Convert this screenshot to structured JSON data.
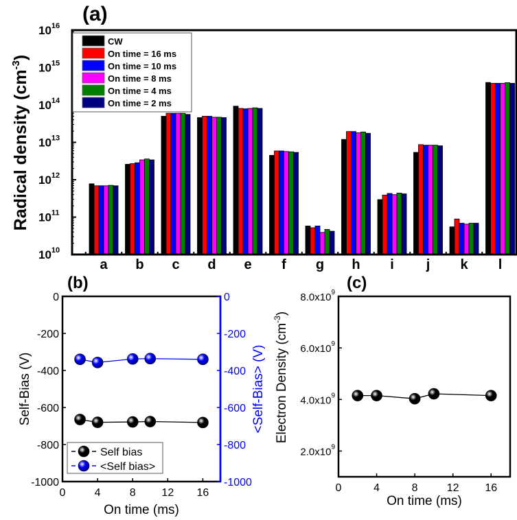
{
  "chart_data": [
    {
      "panel": "(a)",
      "type": "bar",
      "scale": "log",
      "ylabel": "Radical density (cm",
      "ylabel_sup": "-3",
      "ylabel_close": ")",
      "ylim": [
        10000000000.0,
        1e+16
      ],
      "yticks": [
        {
          "base": "10",
          "exp": "10"
        },
        {
          "base": "10",
          "exp": "11"
        },
        {
          "base": "10",
          "exp": "12"
        },
        {
          "base": "10",
          "exp": "13"
        },
        {
          "base": "10",
          "exp": "14"
        },
        {
          "base": "10",
          "exp": "15"
        },
        {
          "base": "10",
          "exp": "16"
        }
      ],
      "categories": [
        "a",
        "b",
        "c",
        "d",
        "e",
        "f",
        "g",
        "h",
        "i",
        "j",
        "k",
        "l"
      ],
      "legend_position": "top-left",
      "series": [
        {
          "name": "CW",
          "color": "#000000",
          "values": [
            780000000000.0,
            2600000000000.0,
            50000000000000.0,
            46000000000000.0,
            93000000000000.0,
            4500000000000.0,
            58000000000.0,
            12000000000000.0,
            295000000000.0,
            5400000000000.0,
            55000000000.0,
            400000000000000.0
          ]
        },
        {
          "name": "On time = 16 ms",
          "color": "#ff0000",
          "values": [
            690000000000.0,
            2700000000000.0,
            60000000000000.0,
            50000000000000.0,
            81000000000000.0,
            5900000000000.0,
            52000000000.0,
            19500000000000.0,
            390000000000.0,
            8700000000000.0,
            89000000000.0,
            380000000000000.0
          ]
        },
        {
          "name": "On time = 10 ms",
          "color": "#0000ff",
          "values": [
            690000000000.0,
            2850000000000.0,
            60000000000000.0,
            50000000000000.0,
            79000000000000.0,
            5900000000000.0,
            58000000000.0,
            19500000000000.0,
            430000000000.0,
            8400000000000.0,
            69000000000.0,
            380000000000000.0
          ]
        },
        {
          "name": "On time = 8 ms",
          "color": "#ff00ff",
          "values": [
            690000000000.0,
            3400000000000.0,
            60000000000000.0,
            47000000000000.0,
            81000000000000.0,
            5700000000000.0,
            39000000000.0,
            18000000000000.0,
            400000000000.0,
            8400000000000.0,
            65000000000.0,
            380000000000000.0
          ]
        },
        {
          "name": "On time = 4 ms",
          "color": "#008000",
          "values": [
            710000000000.0,
            3600000000000.0,
            60000000000000.0,
            47000000000000.0,
            84000000000000.0,
            5600000000000.0,
            47000000000.0,
            19000000000000.0,
            440000000000.0,
            8400000000000.0,
            69000000000.0,
            395000000000000.0
          ]
        },
        {
          "name": "On time = 2 ms",
          "color": "#000080",
          "values": [
            690000000000.0,
            3400000000000.0,
            56000000000000.0,
            46000000000000.0,
            81000000000000.0,
            5400000000000.0,
            42000000000.0,
            17500000000000.0,
            420000000000.0,
            8100000000000.0,
            69000000000.0,
            380000000000000.0
          ]
        }
      ]
    },
    {
      "panel": "(b)",
      "type": "line",
      "xlabel": "On time (ms)",
      "ylabel": "Self-Bias (V)",
      "ylabel_right": "<Self-Bias> (V)",
      "xlim": [
        0,
        18
      ],
      "ylim": [
        -1000,
        0
      ],
      "xticks": [
        "0",
        "4",
        "8",
        "12",
        "16"
      ],
      "yticks": [
        "0",
        "-200",
        "-400",
        "-600",
        "-800",
        "-1000"
      ],
      "legend_position": "bottom-left",
      "series": [
        {
          "name": "Self  bias",
          "color": "#000000",
          "axis": "left",
          "x": [
            2,
            4,
            8,
            10,
            16
          ],
          "y": [
            -665,
            -680,
            -678,
            -676,
            -681
          ]
        },
        {
          "name": "<Self bias>",
          "color": "#0000ff",
          "axis": "right",
          "x": [
            2,
            4,
            8,
            10,
            16
          ],
          "y": [
            -340,
            -357,
            -338,
            -336,
            -340
          ]
        }
      ]
    },
    {
      "panel": "(c)",
      "type": "line",
      "xlabel": "On time (ms)",
      "ylabel": "Electron Density (cm",
      "ylabel_sup": "-3",
      "ylabel_close": ")",
      "xlim": [
        0,
        18
      ],
      "ylim": [
        1000000000.0,
        8000000000.0
      ],
      "xticks": [
        "0",
        "4",
        "8",
        "12",
        "16"
      ],
      "yticks": [
        {
          "value": 2000000000.0,
          "base": "2.0x10",
          "exp": "9"
        },
        {
          "value": 4000000000.0,
          "base": "4.0x10",
          "exp": "9"
        },
        {
          "value": 6000000000.0,
          "base": "6.0x10",
          "exp": "9"
        },
        {
          "value": 8000000000.0,
          "base": "8.0x10",
          "exp": "9"
        }
      ],
      "series": [
        {
          "name": "Electron density",
          "color": "#000000",
          "x": [
            2,
            4,
            8,
            10,
            16
          ],
          "y": [
            4150000000.0,
            4150000000.0,
            4030000000.0,
            4220000000.0,
            4150000000.0
          ]
        }
      ]
    }
  ]
}
